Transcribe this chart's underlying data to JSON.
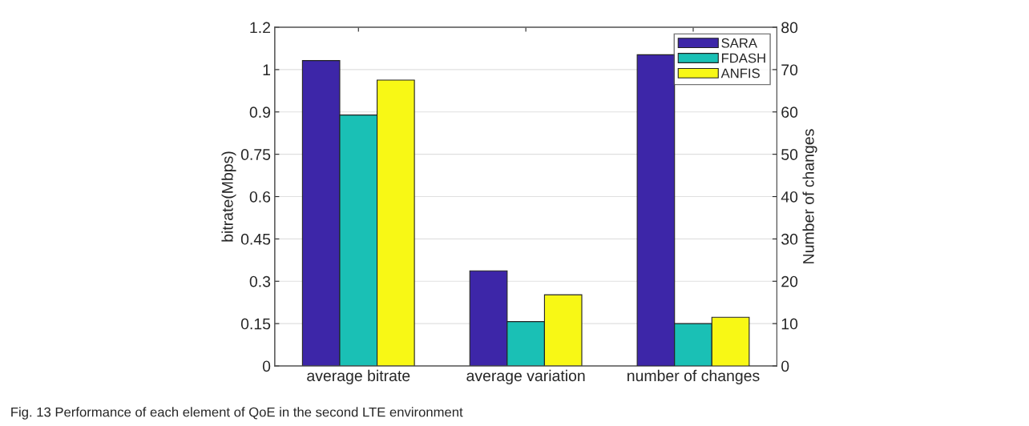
{
  "chart_data": {
    "type": "bar",
    "categories": [
      "average bitrate",
      "average variation",
      "number of changes"
    ],
    "series": [
      {
        "name": "SARA",
        "color": "#3d26a8",
        "values": [
          1.082,
          0.337,
          null
        ]
      },
      {
        "name": "FDASH",
        "color": "#1ac0b5",
        "values": [
          0.889,
          0.157,
          null
        ]
      },
      {
        "name": "ANFIS",
        "color": "#f8f815",
        "values": [
          1.013,
          0.252,
          null
        ]
      },
      {
        "color": "#3d26a8",
        "axis": "y2",
        "values": [
          null,
          null,
          73.5
        ]
      },
      {
        "color": "#1ac0b5",
        "axis": "y2",
        "values": [
          null,
          null,
          10
        ]
      },
      {
        "color": "#f8f815",
        "axis": "y2",
        "values": [
          null,
          null,
          11.5
        ]
      }
    ],
    "ylabel": "bitrate(Mbps)",
    "y2label": "Number of changes",
    "ylim": [
      0,
      1.2
    ],
    "yticks": [
      0,
      0.15,
      0.3,
      0.45,
      0.6,
      0.75,
      0.9,
      {
        "value": 1.05,
        "label": "1"
      },
      1.2
    ],
    "y2lim": [
      0,
      80
    ],
    "y2ticks": [
      0,
      10,
      20,
      30,
      40,
      50,
      60,
      70,
      80
    ],
    "grid": "y",
    "legend": "top right",
    "annotations": [
      "Fig. 13 Performance of each element of QoE in the second LTE environment"
    ]
  }
}
